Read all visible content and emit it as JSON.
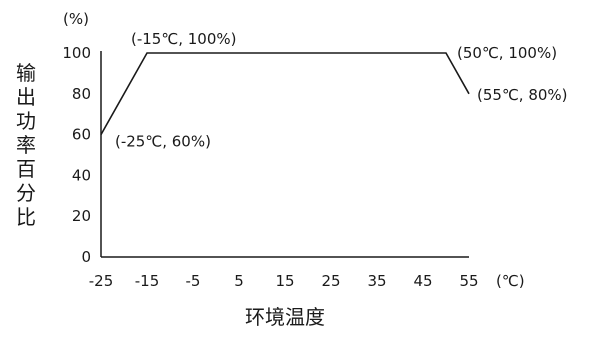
{
  "chart_data": {
    "type": "line",
    "ylabel": "输出功率百分比",
    "xlabel": "环境温度",
    "y_unit": "(%)",
    "x_unit": "(℃)",
    "xlim": [
      -25,
      55
    ],
    "ylim": [
      0,
      100
    ],
    "x_ticks": [
      -25,
      -15,
      -5,
      5,
      15,
      25,
      35,
      45,
      55
    ],
    "y_ticks": [
      0,
      20,
      40,
      60,
      80,
      100
    ],
    "grid": false,
    "series": [
      {
        "x": [
          -25,
          -15,
          50,
          55
        ],
        "y": [
          60,
          100,
          100,
          80
        ]
      }
    ],
    "annotations": [
      {
        "text": "(-25℃, 60%)",
        "x": -25,
        "y": 60
      },
      {
        "text": "(-15℃, 100%)",
        "x": -15,
        "y": 100
      },
      {
        "text": "(50℃, 100%)",
        "x": 50,
        "y": 100
      },
      {
        "text": "(55℃, 80%)",
        "x": 55,
        "y": 80
      }
    ]
  }
}
